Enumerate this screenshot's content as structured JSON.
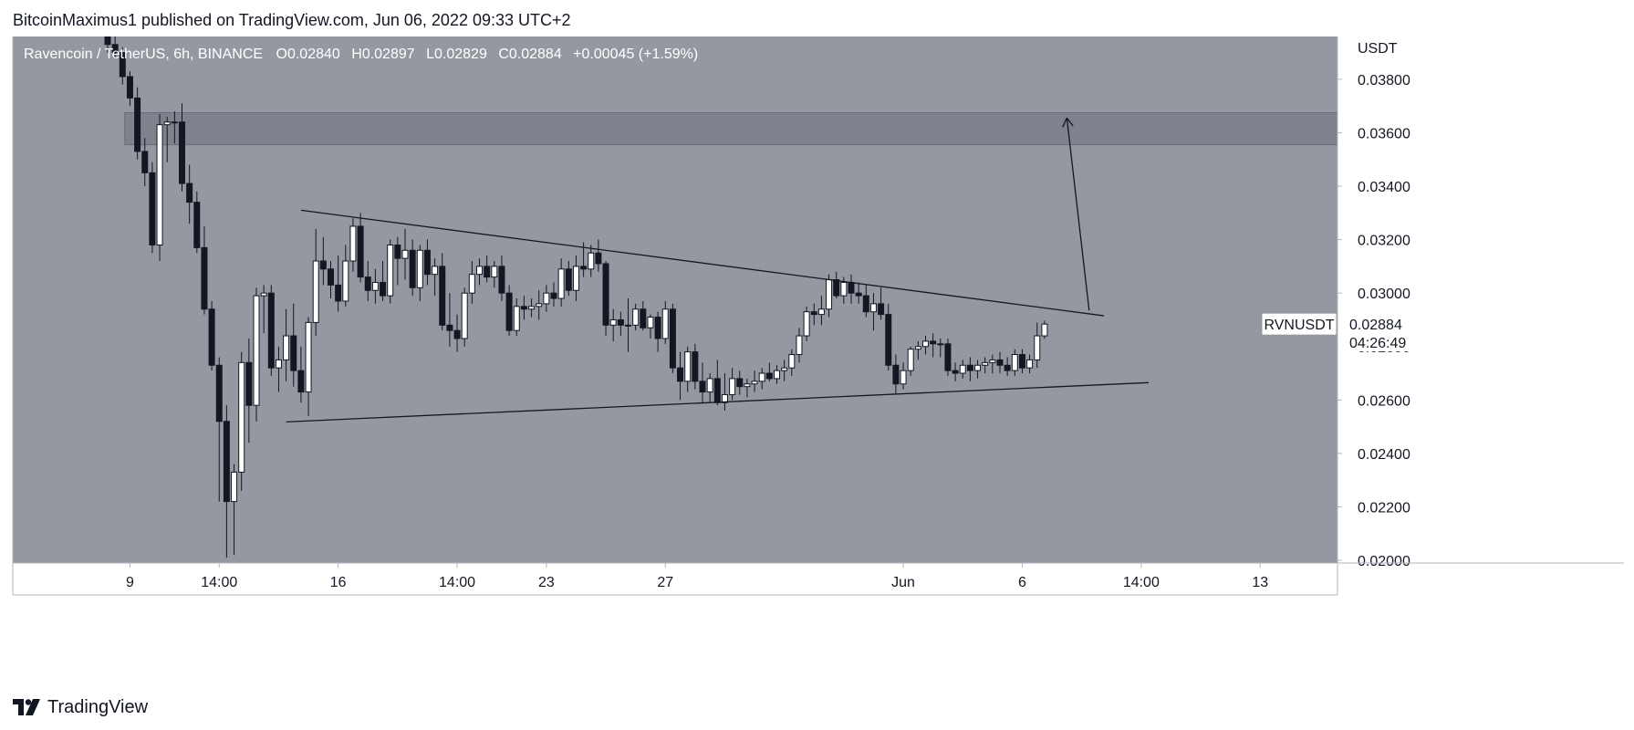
{
  "header": {
    "attribution": "BitcoinMaximus1 published on TradingView.com, Jun 06, 2022 09:33 UTC+2"
  },
  "symbol_bar": {
    "name": "Ravencoin / TetherUS, 6h, BINANCE",
    "open_label": "O",
    "open": "0.02840",
    "high_label": "H",
    "high": "0.02897",
    "low_label": "L",
    "low": "0.02829",
    "close_label": "C",
    "close": "0.02884",
    "change": "+0.00045 (+1.59%)"
  },
  "price_tag": {
    "ticker": "RVNUSDT",
    "price": "0.02884",
    "countdown": "04:26:49"
  },
  "footer": {
    "brand": "TradingView"
  },
  "colors": {
    "plot_bg": "#9598a1",
    "zone": "#787b86",
    "bull_candle": "#ffffff",
    "bear_candle": "#131722",
    "trendline": "#131722"
  },
  "chart_data": {
    "type": "candlestick",
    "title": "Ravencoin / TetherUS, 6h, BINANCE",
    "y_axis_unit": "USDT",
    "ylim": [
      0.0199,
      0.0396
    ],
    "y_ticks": [
      "0.03800",
      "0.03600",
      "0.03400",
      "0.03200",
      "0.03000",
      "0.02800",
      "0.02600",
      "0.02400",
      "0.02200",
      "0.02000"
    ],
    "x_ticks": [
      {
        "label": "9",
        "bar": 3
      },
      {
        "label": "14:00",
        "bar": 15
      },
      {
        "label": "16",
        "bar": 31
      },
      {
        "label": "14:00",
        "bar": 47
      },
      {
        "label": "23",
        "bar": 59
      },
      {
        "label": "27",
        "bar": 75
      },
      {
        "label": "Jun",
        "bar": 107
      },
      {
        "label": "6",
        "bar": 123
      },
      {
        "label": "14:00",
        "bar": 139
      },
      {
        "label": "13",
        "bar": 155
      }
    ],
    "candles": [
      [
        0.0396,
        0.0399,
        0.039,
        0.0393
      ],
      [
        0.0393,
        0.0396,
        0.0388,
        0.039
      ],
      [
        0.039,
        0.0392,
        0.0378,
        0.0381
      ],
      [
        0.0381,
        0.0383,
        0.037,
        0.0373
      ],
      [
        0.0373,
        0.0377,
        0.035,
        0.0353
      ],
      [
        0.0353,
        0.0358,
        0.034,
        0.0345
      ],
      [
        0.0345,
        0.0349,
        0.0315,
        0.0318
      ],
      [
        0.0318,
        0.0367,
        0.0312,
        0.0363
      ],
      [
        0.0363,
        0.0366,
        0.0349,
        0.0364
      ],
      [
        0.0364,
        0.0368,
        0.0356,
        0.0364
      ],
      [
        0.0364,
        0.0371,
        0.0338,
        0.0341
      ],
      [
        0.0341,
        0.0348,
        0.0326,
        0.0334
      ],
      [
        0.0334,
        0.0338,
        0.0315,
        0.0317
      ],
      [
        0.0317,
        0.0325,
        0.0292,
        0.0294
      ],
      [
        0.0294,
        0.0297,
        0.0271,
        0.0273
      ],
      [
        0.0273,
        0.0276,
        0.0222,
        0.0252
      ],
      [
        0.0252,
        0.0258,
        0.0201,
        0.0222
      ],
      [
        0.0222,
        0.0236,
        0.0202,
        0.0233
      ],
      [
        0.0233,
        0.0278,
        0.0226,
        0.0274
      ],
      [
        0.0274,
        0.0283,
        0.0244,
        0.0258
      ],
      [
        0.0258,
        0.0302,
        0.0252,
        0.0299
      ],
      [
        0.0299,
        0.0303,
        0.0285,
        0.03
      ],
      [
        0.03,
        0.0303,
        0.0269,
        0.0272
      ],
      [
        0.0272,
        0.028,
        0.0263,
        0.0275
      ],
      [
        0.0275,
        0.0294,
        0.0267,
        0.0284
      ],
      [
        0.0284,
        0.0296,
        0.0265,
        0.0271
      ],
      [
        0.0271,
        0.028,
        0.0259,
        0.0263
      ],
      [
        0.0263,
        0.0291,
        0.0254,
        0.0289
      ],
      [
        0.0289,
        0.0324,
        0.0284,
        0.0312
      ],
      [
        0.0312,
        0.0321,
        0.0303,
        0.0309
      ],
      [
        0.0309,
        0.0312,
        0.0298,
        0.0303
      ],
      [
        0.0303,
        0.0314,
        0.0293,
        0.0297
      ],
      [
        0.0297,
        0.0318,
        0.0295,
        0.0312
      ],
      [
        0.0312,
        0.0328,
        0.0308,
        0.0325
      ],
      [
        0.0325,
        0.033,
        0.0304,
        0.0306
      ],
      [
        0.0306,
        0.0312,
        0.0297,
        0.0301
      ],
      [
        0.0301,
        0.0309,
        0.0296,
        0.0304
      ],
      [
        0.0304,
        0.0312,
        0.0297,
        0.0299
      ],
      [
        0.0299,
        0.032,
        0.0296,
        0.0318
      ],
      [
        0.0318,
        0.0321,
        0.0303,
        0.0313
      ],
      [
        0.0313,
        0.0324,
        0.0305,
        0.0316
      ],
      [
        0.0316,
        0.032,
        0.0299,
        0.0302
      ],
      [
        0.0302,
        0.0318,
        0.0297,
        0.0316
      ],
      [
        0.0316,
        0.032,
        0.0303,
        0.0307
      ],
      [
        0.0307,
        0.0313,
        0.0299,
        0.031
      ],
      [
        0.031,
        0.0315,
        0.0286,
        0.0288
      ],
      [
        0.0288,
        0.03,
        0.028,
        0.0286
      ],
      [
        0.0286,
        0.0292,
        0.0278,
        0.0283
      ],
      [
        0.0283,
        0.0302,
        0.028,
        0.03
      ],
      [
        0.03,
        0.0312,
        0.0296,
        0.0307
      ],
      [
        0.0307,
        0.0313,
        0.0303,
        0.031
      ],
      [
        0.031,
        0.0314,
        0.0304,
        0.0306
      ],
      [
        0.0306,
        0.0312,
        0.0302,
        0.031
      ],
      [
        0.031,
        0.0314,
        0.0297,
        0.03
      ],
      [
        0.03,
        0.0303,
        0.0284,
        0.0286
      ],
      [
        0.0286,
        0.0298,
        0.0284,
        0.0295
      ],
      [
        0.0295,
        0.0299,
        0.029,
        0.0294
      ],
      [
        0.0294,
        0.0298,
        0.0291,
        0.0295
      ],
      [
        0.0295,
        0.0301,
        0.029,
        0.0296
      ],
      [
        0.0296,
        0.0303,
        0.0293,
        0.03
      ],
      [
        0.03,
        0.0304,
        0.0295,
        0.0298
      ],
      [
        0.0298,
        0.0313,
        0.0295,
        0.0309
      ],
      [
        0.0309,
        0.0312,
        0.0299,
        0.0301
      ],
      [
        0.0301,
        0.0314,
        0.0297,
        0.031
      ],
      [
        0.031,
        0.0319,
        0.0306,
        0.0309
      ],
      [
        0.0309,
        0.0318,
        0.0306,
        0.0315
      ],
      [
        0.0315,
        0.032,
        0.0308,
        0.0311
      ],
      [
        0.0311,
        0.0312,
        0.0284,
        0.0288
      ],
      [
        0.0288,
        0.0294,
        0.0282,
        0.029
      ],
      [
        0.029,
        0.0293,
        0.0284,
        0.0288
      ],
      [
        0.0288,
        0.0298,
        0.0278,
        0.0288
      ],
      [
        0.0288,
        0.0296,
        0.0286,
        0.0294
      ],
      [
        0.0294,
        0.0297,
        0.0286,
        0.0287
      ],
      [
        0.0287,
        0.0292,
        0.0283,
        0.0291
      ],
      [
        0.0291,
        0.0293,
        0.0278,
        0.0283
      ],
      [
        0.0283,
        0.0297,
        0.0281,
        0.0294
      ],
      [
        0.0294,
        0.0296,
        0.027,
        0.0272
      ],
      [
        0.0272,
        0.0278,
        0.026,
        0.0267
      ],
      [
        0.0267,
        0.028,
        0.0263,
        0.0278
      ],
      [
        0.0278,
        0.0281,
        0.0264,
        0.0267
      ],
      [
        0.0267,
        0.0274,
        0.0259,
        0.0263
      ],
      [
        0.0263,
        0.027,
        0.0259,
        0.0268
      ],
      [
        0.0268,
        0.0275,
        0.0258,
        0.0259
      ],
      [
        0.0259,
        0.027,
        0.0256,
        0.0262
      ],
      [
        0.0262,
        0.0272,
        0.026,
        0.0268
      ],
      [
        0.0268,
        0.0271,
        0.0262,
        0.0265
      ],
      [
        0.0265,
        0.0268,
        0.0261,
        0.0266
      ],
      [
        0.0266,
        0.0271,
        0.0263,
        0.0267
      ],
      [
        0.0267,
        0.0272,
        0.0264,
        0.027
      ],
      [
        0.027,
        0.0274,
        0.0267,
        0.0268
      ],
      [
        0.0268,
        0.0273,
        0.0266,
        0.0271
      ],
      [
        0.0271,
        0.0275,
        0.0267,
        0.0272
      ],
      [
        0.0272,
        0.0279,
        0.0269,
        0.0277
      ],
      [
        0.0277,
        0.0287,
        0.0274,
        0.0284
      ],
      [
        0.0284,
        0.0295,
        0.0282,
        0.0293
      ],
      [
        0.0293,
        0.0296,
        0.0288,
        0.0292
      ],
      [
        0.0292,
        0.0299,
        0.0288,
        0.0294
      ],
      [
        0.0294,
        0.0307,
        0.0291,
        0.0305
      ],
      [
        0.0305,
        0.0308,
        0.0298,
        0.0299
      ],
      [
        0.0299,
        0.0306,
        0.0296,
        0.0304
      ],
      [
        0.0304,
        0.0307,
        0.0296,
        0.03
      ],
      [
        0.03,
        0.0304,
        0.0296,
        0.0299
      ],
      [
        0.0299,
        0.0303,
        0.0291,
        0.0293
      ],
      [
        0.0293,
        0.03,
        0.0286,
        0.0296
      ],
      [
        0.0296,
        0.0302,
        0.029,
        0.0292
      ],
      [
        0.0292,
        0.0296,
        0.0271,
        0.0273
      ],
      [
        0.0273,
        0.0277,
        0.0262,
        0.0266
      ],
      [
        0.0266,
        0.0274,
        0.0264,
        0.0271
      ],
      [
        0.0271,
        0.028,
        0.0269,
        0.0279
      ],
      [
        0.0279,
        0.0282,
        0.0275,
        0.028
      ],
      [
        0.028,
        0.0284,
        0.0277,
        0.0282
      ],
      [
        0.0282,
        0.0285,
        0.0276,
        0.0281
      ],
      [
        0.0281,
        0.0283,
        0.0276,
        0.0281
      ],
      [
        0.0281,
        0.0283,
        0.0269,
        0.0271
      ],
      [
        0.0271,
        0.0274,
        0.0267,
        0.027
      ],
      [
        0.027,
        0.0275,
        0.0268,
        0.0273
      ],
      [
        0.0273,
        0.0276,
        0.0267,
        0.0271
      ],
      [
        0.0271,
        0.0275,
        0.0268,
        0.0273
      ],
      [
        0.0273,
        0.0276,
        0.027,
        0.0274
      ],
      [
        0.0274,
        0.0277,
        0.027,
        0.0275
      ],
      [
        0.0275,
        0.0278,
        0.027,
        0.0273
      ],
      [
        0.0273,
        0.0276,
        0.0269,
        0.0271
      ],
      [
        0.0271,
        0.0279,
        0.0269,
        0.0277
      ],
      [
        0.0277,
        0.0279,
        0.027,
        0.0272
      ],
      [
        0.0272,
        0.0277,
        0.027,
        0.0275
      ],
      [
        0.0275,
        0.0289,
        0.0272,
        0.0284
      ],
      [
        0.0284,
        0.02897,
        0.02829,
        0.02884
      ]
    ],
    "resistance_zone": [
      0.03555,
      0.03675
    ],
    "upper_trendline": [
      {
        "bar": 26,
        "price": 0.0331
      },
      {
        "bar": 134,
        "price": 0.02915
      }
    ],
    "lower_trendline": [
      {
        "bar": 24,
        "price": 0.02518
      },
      {
        "bar": 140,
        "price": 0.02665
      }
    ],
    "target_arrow": [
      {
        "bar": 132,
        "price": 0.02935
      },
      {
        "bar": 129,
        "price": 0.03655
      }
    ],
    "last_price": 0.02884
  }
}
